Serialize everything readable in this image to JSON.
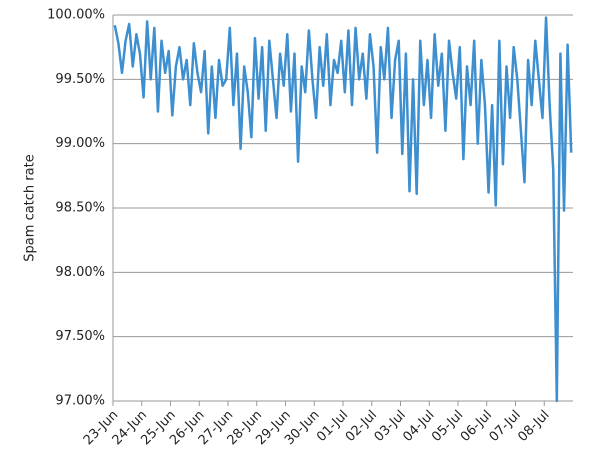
{
  "chart_data": {
    "type": "line",
    "y_label": "Spam catch rate",
    "categories": [
      "23-Jun",
      null,
      null,
      null,
      null,
      null,
      null,
      null,
      "24-Jun",
      null,
      null,
      null,
      null,
      null,
      null,
      null,
      "25-Jun",
      null,
      null,
      null,
      null,
      null,
      null,
      null,
      "26-Jun",
      null,
      null,
      null,
      null,
      null,
      null,
      null,
      "27-Jun",
      null,
      null,
      null,
      null,
      null,
      null,
      null,
      "28-Jun",
      null,
      null,
      null,
      null,
      null,
      null,
      null,
      "29-Jun",
      null,
      null,
      null,
      null,
      null,
      null,
      null,
      "30-Jun",
      null,
      null,
      null,
      null,
      null,
      null,
      null,
      "01-Jul",
      null,
      null,
      null,
      null,
      null,
      null,
      null,
      "02-Jul",
      null,
      null,
      null,
      null,
      null,
      null,
      null,
      "03-Jul",
      null,
      null,
      null,
      null,
      null,
      null,
      null,
      "04-Jul",
      null,
      null,
      null,
      null,
      null,
      null,
      null,
      "05-Jul",
      null,
      null,
      null,
      null,
      null,
      null,
      null,
      "06-Jul",
      null,
      null,
      null,
      null,
      null,
      null,
      null,
      "07-Jul",
      null,
      null,
      null,
      null,
      null,
      null,
      null,
      "08-Jul",
      null,
      null,
      null,
      null,
      null,
      null,
      null
    ],
    "series": [
      {
        "color": "#3d8fd0",
        "values": [
          99.92,
          99.78,
          99.55,
          99.8,
          99.93,
          99.6,
          99.85,
          99.7,
          99.36,
          99.95,
          99.5,
          99.9,
          99.25,
          99.8,
          99.55,
          99.72,
          99.22,
          99.6,
          99.75,
          99.5,
          99.65,
          99.3,
          99.78,
          99.55,
          99.4,
          99.72,
          99.08,
          99.6,
          99.2,
          99.65,
          99.45,
          99.5,
          99.9,
          99.3,
          99.7,
          98.96,
          99.6,
          99.4,
          99.05,
          99.82,
          99.35,
          99.75,
          99.1,
          99.8,
          99.5,
          99.2,
          99.7,
          99.45,
          99.85,
          99.25,
          99.7,
          98.86,
          99.6,
          99.4,
          99.88,
          99.5,
          99.2,
          99.75,
          99.45,
          99.85,
          99.3,
          99.65,
          99.55,
          99.8,
          99.4,
          99.88,
          99.3,
          99.9,
          99.5,
          99.7,
          99.35,
          99.85,
          99.6,
          98.93,
          99.75,
          99.5,
          99.9,
          99.2,
          99.65,
          99.8,
          98.92,
          99.7,
          98.63,
          99.5,
          98.61,
          99.8,
          99.3,
          99.65,
          99.2,
          99.85,
          99.45,
          99.7,
          99.1,
          99.8,
          99.55,
          99.35,
          99.75,
          98.88,
          99.6,
          99.3,
          99.8,
          99.0,
          99.65,
          99.3,
          98.62,
          99.3,
          98.52,
          99.8,
          98.84,
          99.6,
          99.2,
          99.75,
          99.5,
          99.1,
          98.7,
          99.65,
          99.3,
          99.8,
          99.5,
          99.2,
          99.98,
          99.3,
          98.8,
          97.0,
          99.7,
          98.48,
          99.77,
          98.93
        ]
      }
    ],
    "ylim": [
      97,
      100
    ],
    "yticks": [
      {
        "value": 97,
        "label": "97.00%"
      },
      {
        "value": 97.5,
        "label": "97.50%"
      },
      {
        "value": 98,
        "label": "98.00%"
      },
      {
        "value": 98.5,
        "label": "98.50%"
      },
      {
        "value": 99,
        "label": "99.00%"
      },
      {
        "value": 99.5,
        "label": "99.50%"
      },
      {
        "value": 100,
        "label": "100.00%"
      }
    ],
    "grid": true
  }
}
